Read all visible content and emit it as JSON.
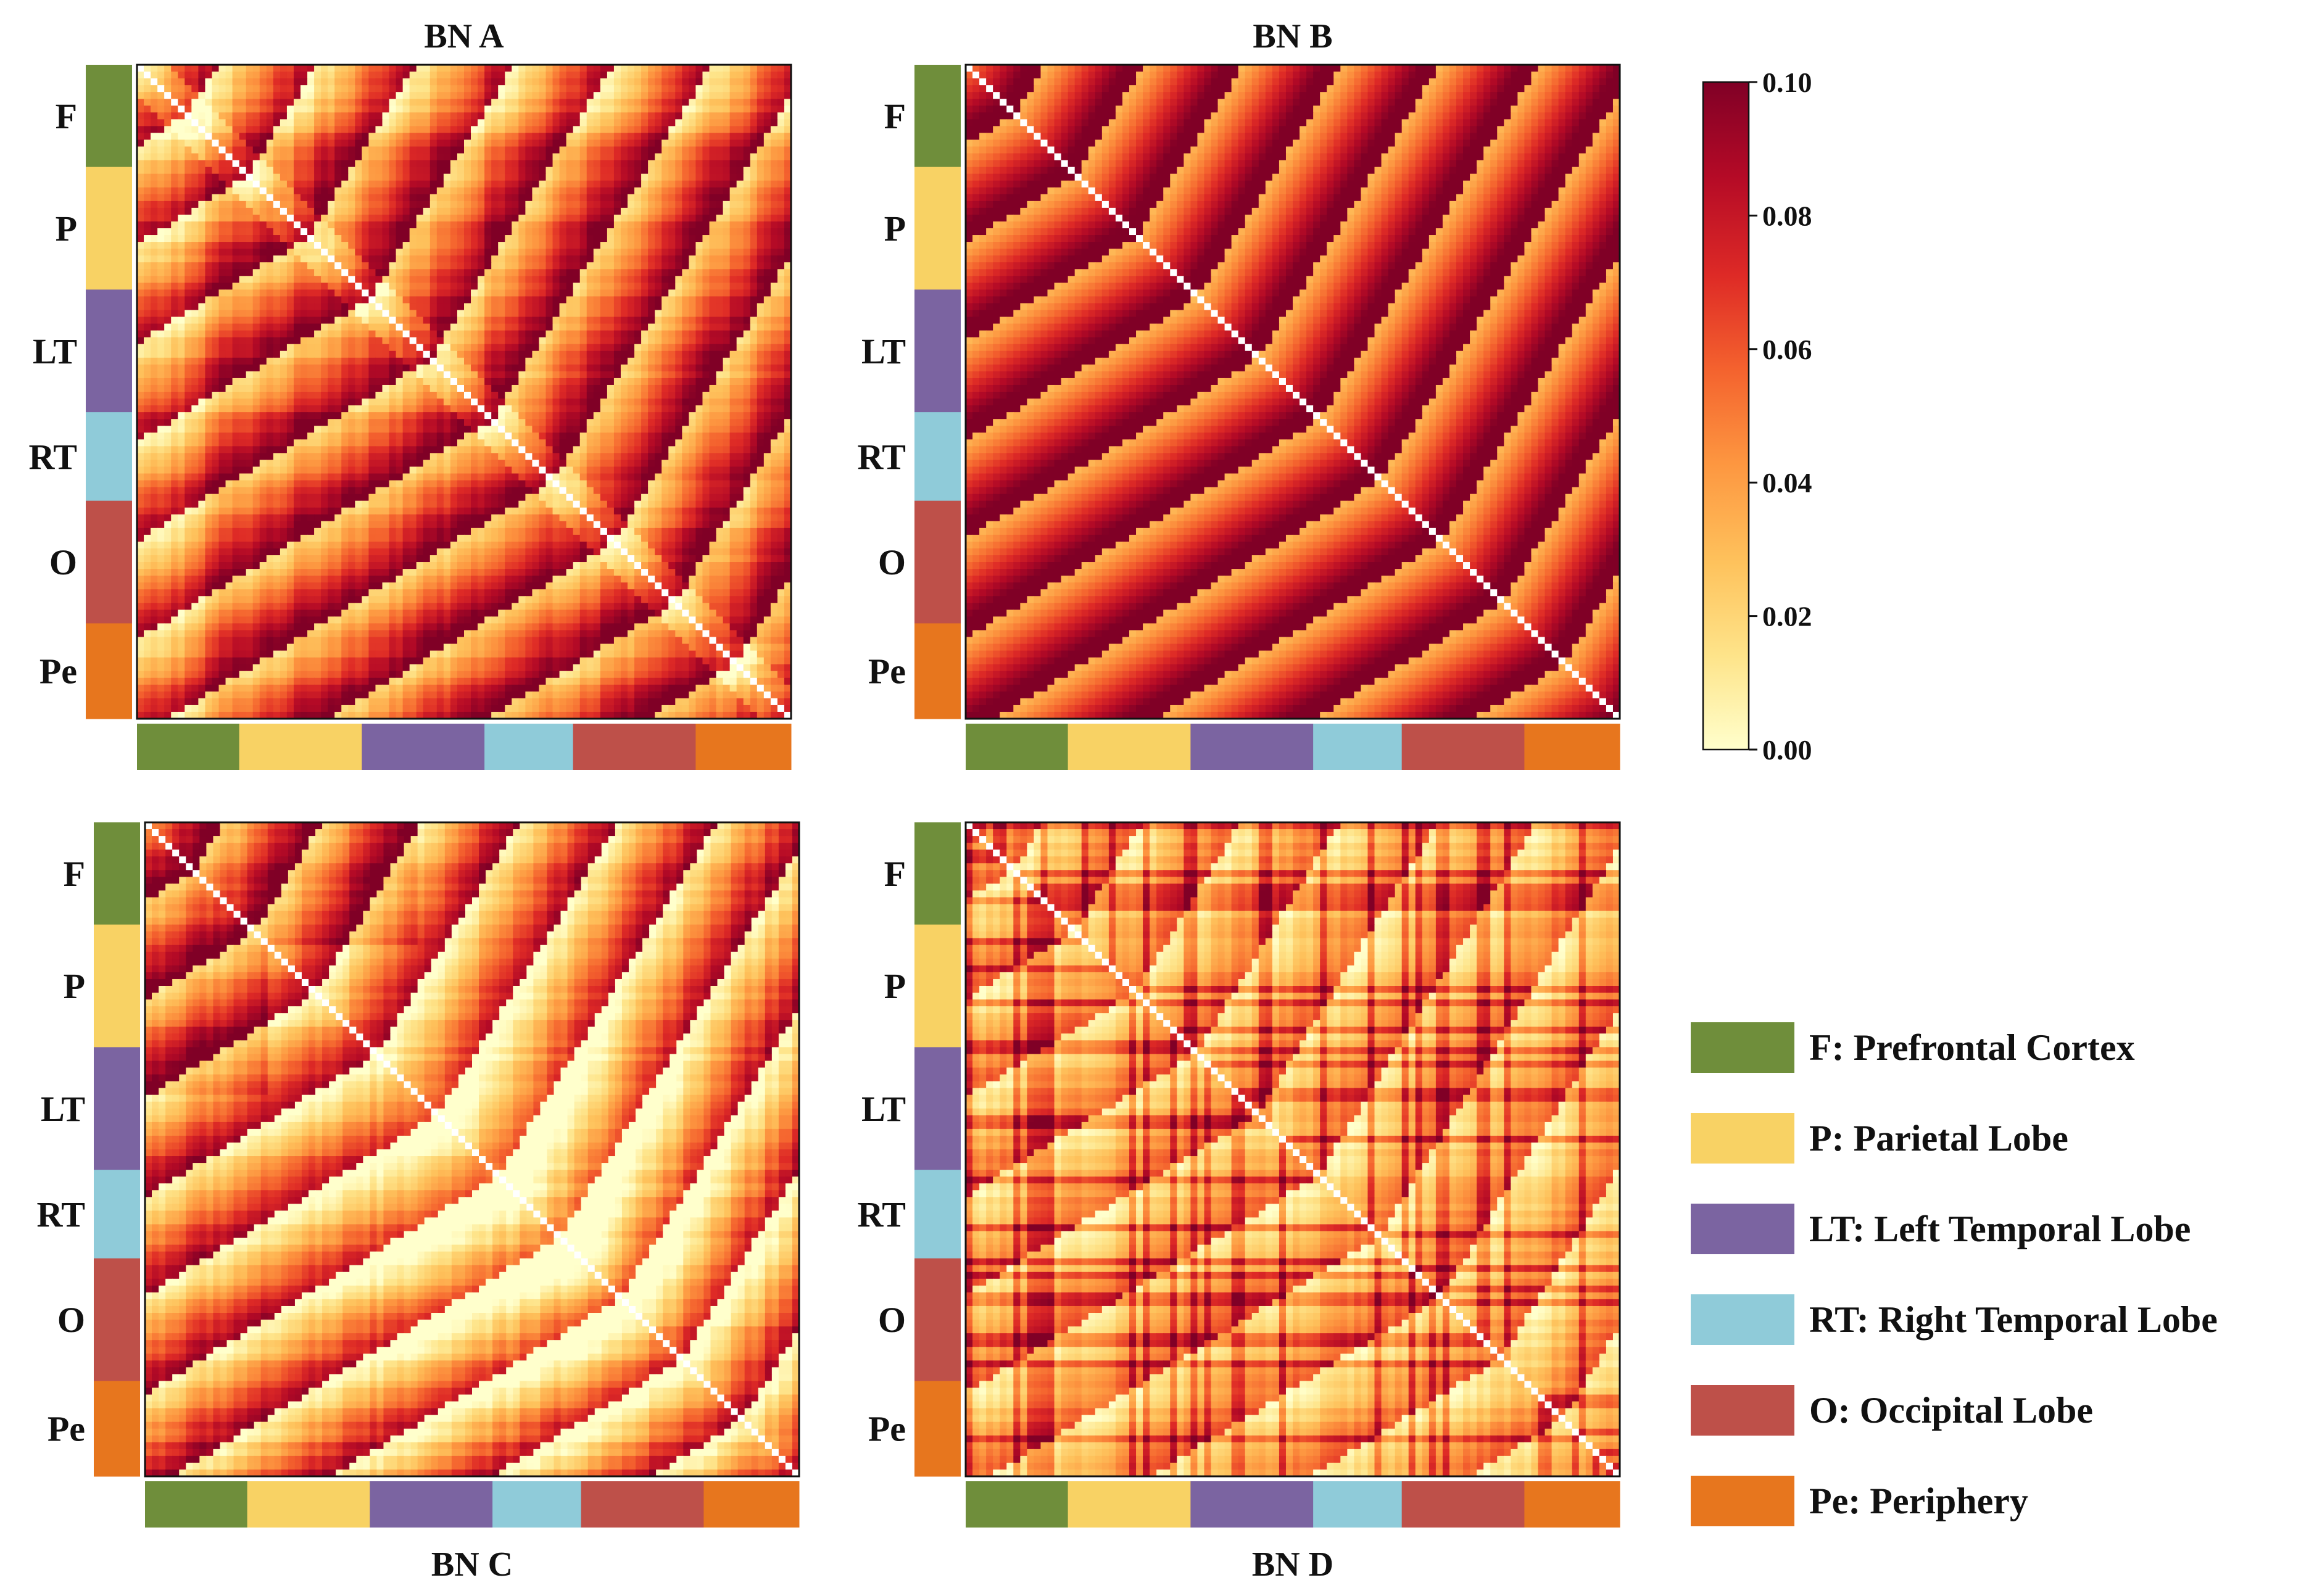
{
  "chart_data": {
    "type": "heatmap",
    "description_note": "Four 96x96 brain-network connectivity matrices grouped by region; values read from colorbar (0.00–0.10).",
    "regions": [
      {
        "code": "F",
        "name": "Prefrontal Cortex",
        "color": "#6f8e3b",
        "count": 15
      },
      {
        "code": "P",
        "name": "Parietal Lobe",
        "color": "#f8d264",
        "count": 18
      },
      {
        "code": "LT",
        "name": "Left Temporal Lobe",
        "color": "#7b64a1",
        "count": 18
      },
      {
        "code": "RT",
        "name": "Right Temporal Lobe",
        "color": "#8fcbd9",
        "count": 13
      },
      {
        "code": "O",
        "name": "Occipital Lobe",
        "color": "#be5049",
        "count": 18
      },
      {
        "code": "Pe",
        "name": "Periphery",
        "color": "#e7761e",
        "count": 14
      }
    ],
    "matrix_size": 96,
    "value_range": [
      0.0,
      0.1
    ],
    "colorscale": [
      "#ffffcc",
      "#fee48a",
      "#fec25c",
      "#fd9640",
      "#f4622e",
      "#de2a26",
      "#b40a26",
      "#800026"
    ],
    "colorbar_ticks": [
      "0.00",
      "0.02",
      "0.04",
      "0.06",
      "0.08",
      "0.10"
    ],
    "panels": [
      {
        "title": "BN A",
        "title_position": "top",
        "mean_level": 0.062,
        "pattern": "mixed-diagonal"
      },
      {
        "title": "BN B",
        "title_position": "top",
        "mean_level": 0.074,
        "pattern": "uniform-high"
      },
      {
        "title": "BN C",
        "title_position": "bottom",
        "mean_level": 0.04,
        "pattern": "light-center"
      },
      {
        "title": "BN D",
        "title_position": "bottom",
        "mean_level": 0.05,
        "pattern": "stripes"
      }
    ],
    "legend": [
      {
        "code": "F",
        "label": "F: Prefrontal Cortex"
      },
      {
        "code": "P",
        "label": "P: Parietal Lobe"
      },
      {
        "code": "LT",
        "label": "LT: Left Temporal Lobe"
      },
      {
        "code": "RT",
        "label": "RT: Right Temporal Lobe"
      },
      {
        "code": "O",
        "label": "O: Occipital Lobe"
      },
      {
        "code": "Pe",
        "label": "Pe: Periphery"
      }
    ]
  }
}
